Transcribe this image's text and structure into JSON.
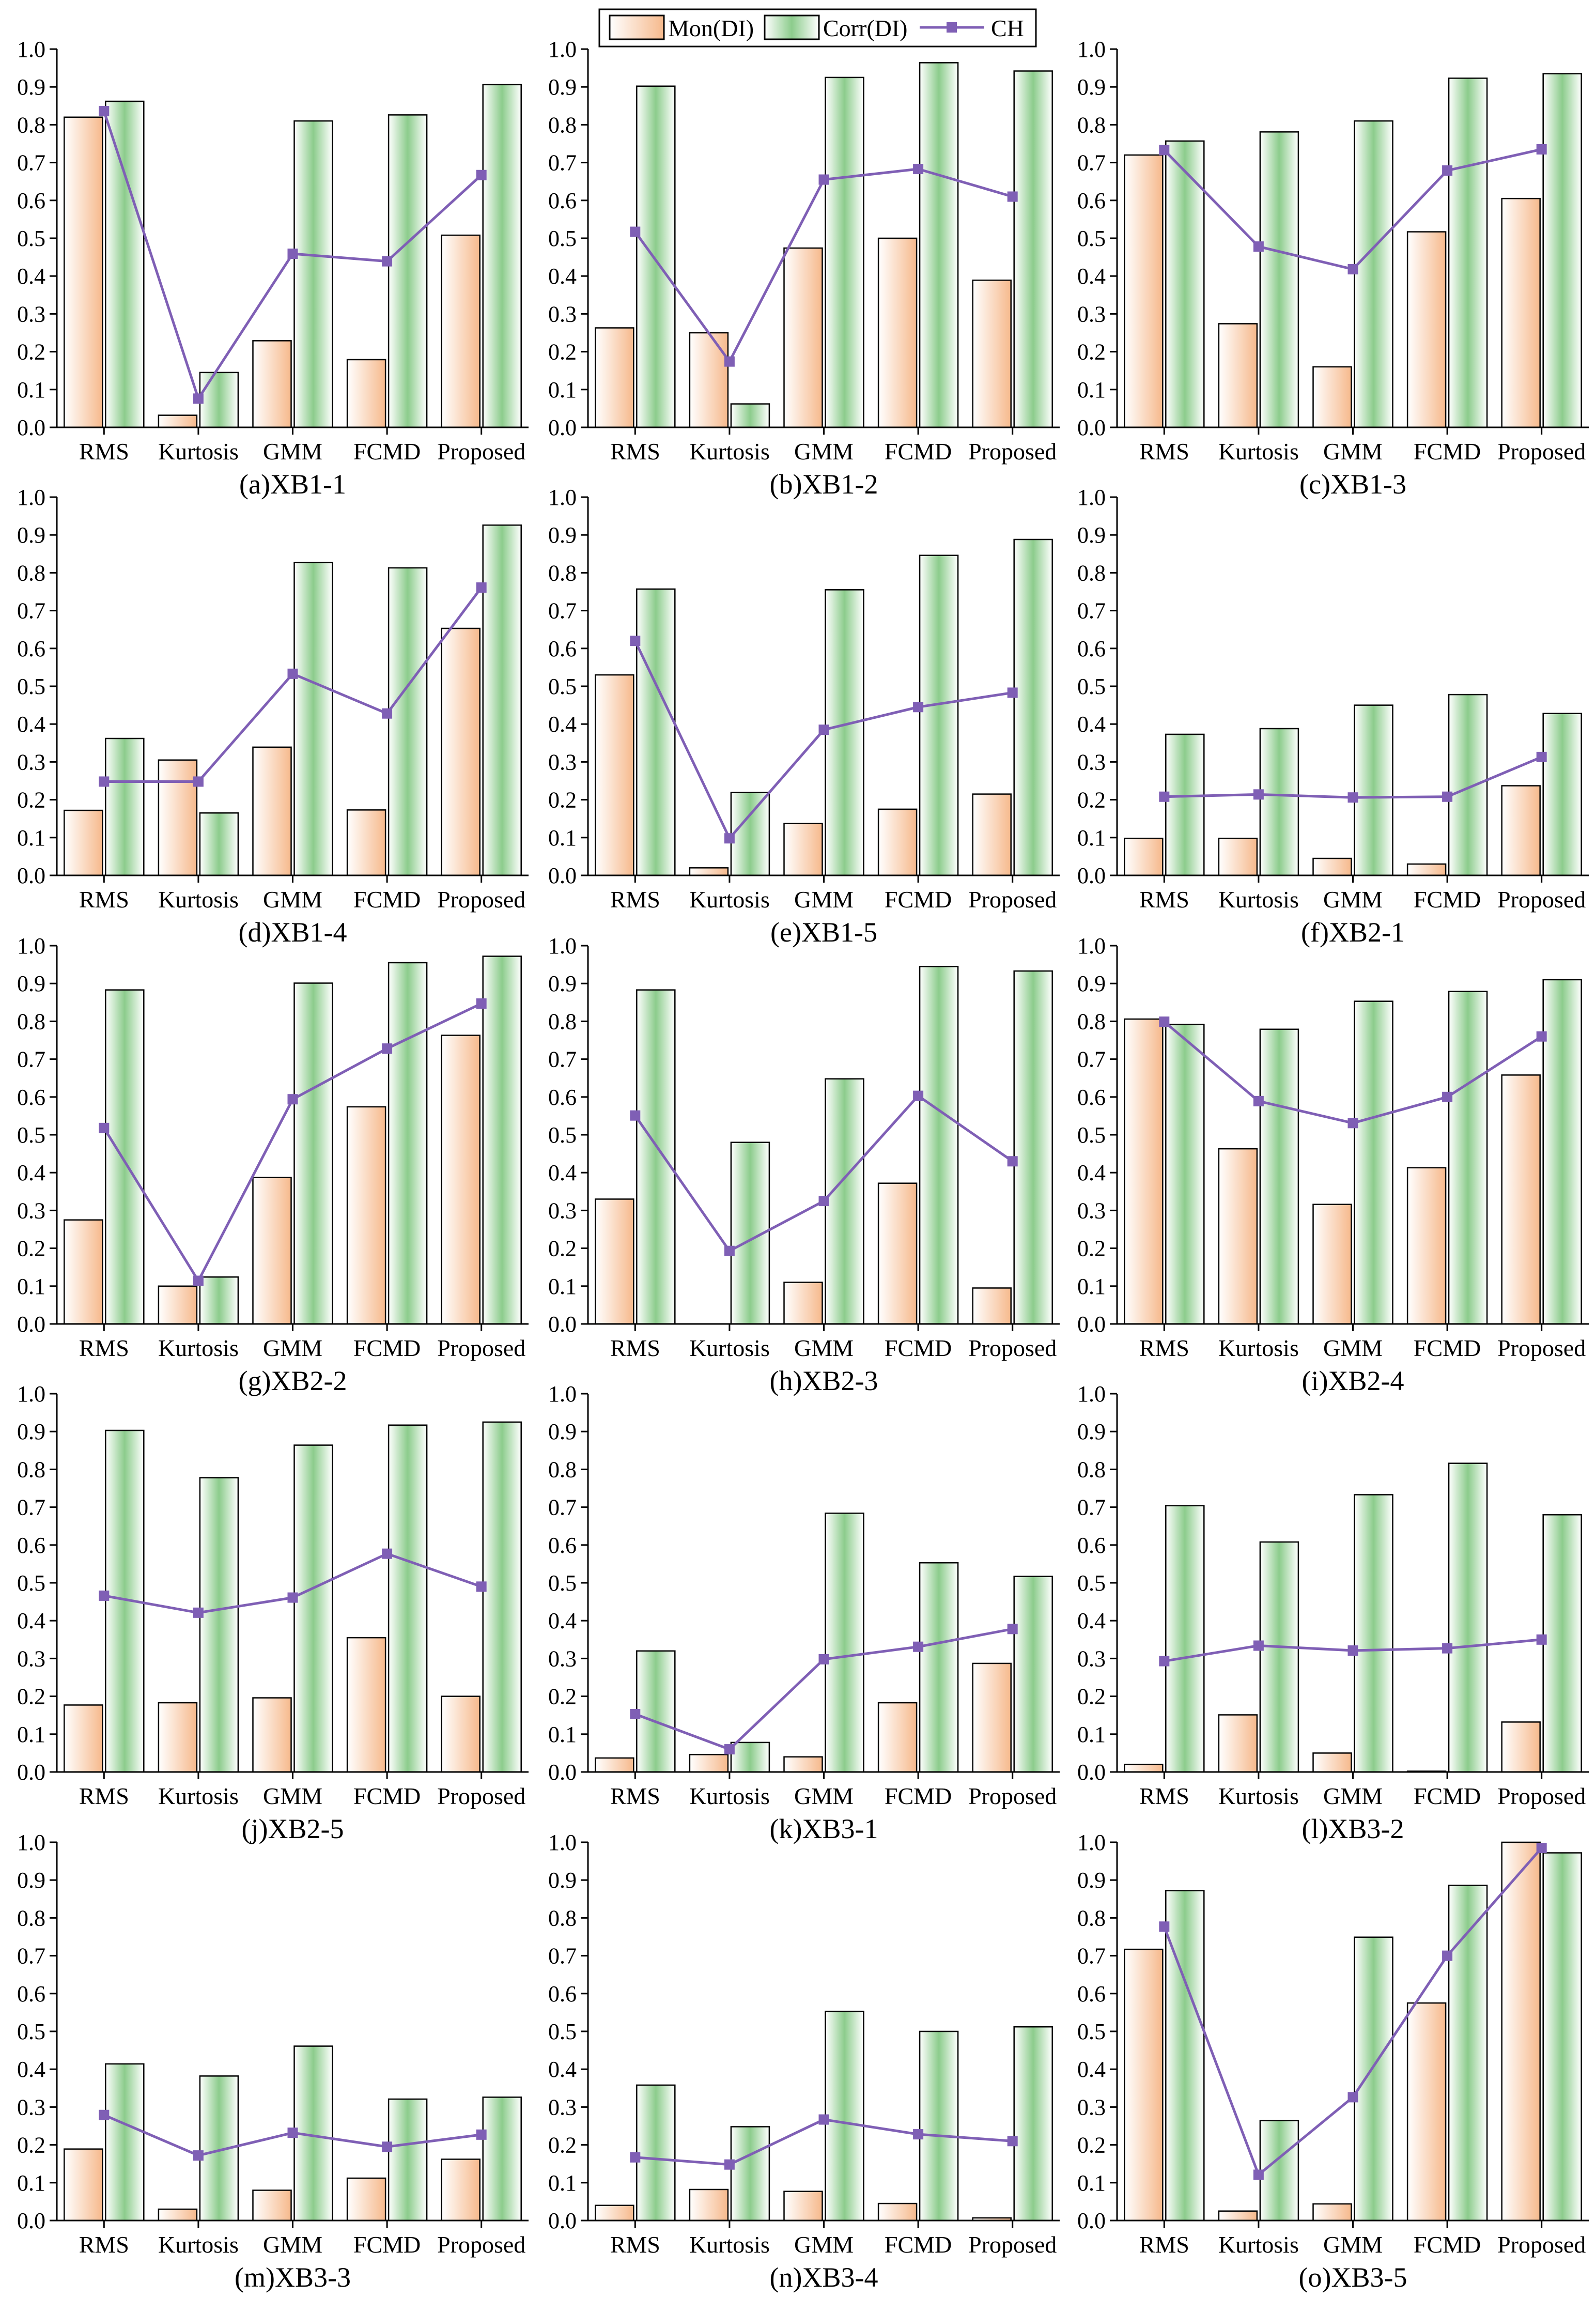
{
  "legend": {
    "mon_label": "Mon(DI)",
    "corr_label": "Corr(DI)",
    "ch_label": "CH"
  },
  "colors": {
    "mon_light": "#ffffff",
    "mon_dark": "#f6b98c",
    "corr_light": "#ffffff",
    "corr_dark": "#8ccc8c",
    "ch": "#7f5fb5"
  },
  "chart_data": [
    {
      "type": "bar",
      "title": "(a)XB1-1",
      "categories": [
        "RMS",
        "Kurtosis",
        "GMM",
        "FCMD",
        "Proposed"
      ],
      "ylim": [
        0,
        1
      ],
      "yticks": [
        "0.0",
        "0.1",
        "0.2",
        "0.3",
        "0.4",
        "0.5",
        "0.6",
        "0.7",
        "0.8",
        "0.9",
        "1.0"
      ],
      "series": [
        {
          "name": "Mon(DI)",
          "values": [
            0.82,
            0.032,
            0.229,
            0.179,
            0.508
          ]
        },
        {
          "name": "Corr(DI)",
          "values": [
            0.862,
            0.145,
            0.81,
            0.826,
            0.906
          ]
        },
        {
          "name": "CH",
          "values": [
            0.836,
            0.076,
            0.459,
            0.439,
            0.667
          ]
        }
      ]
    },
    {
      "type": "bar",
      "title": "(b)XB1-2",
      "categories": [
        "RMS",
        "Kurtosis",
        "GMM",
        "FCMD",
        "Proposed"
      ],
      "ylim": [
        0,
        1
      ],
      "yticks": [
        "0.0",
        "0.1",
        "0.2",
        "0.3",
        "0.4",
        "0.5",
        "0.6",
        "0.7",
        "0.8",
        "0.9",
        "1.0"
      ],
      "series": [
        {
          "name": "Mon(DI)",
          "values": [
            0.263,
            0.25,
            0.474,
            0.5,
            0.389
          ]
        },
        {
          "name": "Corr(DI)",
          "values": [
            0.902,
            0.062,
            0.925,
            0.964,
            0.942
          ]
        },
        {
          "name": "CH",
          "values": [
            0.517,
            0.174,
            0.655,
            0.683,
            0.61
          ]
        }
      ]
    },
    {
      "type": "bar",
      "title": "(c)XB1-3",
      "categories": [
        "RMS",
        "Kurtosis",
        "GMM",
        "FCMD",
        "Proposed"
      ],
      "ylim": [
        0,
        1
      ],
      "yticks": [
        "0.0",
        "0.1",
        "0.2",
        "0.3",
        "0.4",
        "0.5",
        "0.6",
        "0.7",
        "0.8",
        "0.9",
        "1.0"
      ],
      "series": [
        {
          "name": "Mon(DI)",
          "values": [
            0.72,
            0.274,
            0.16,
            0.517,
            0.605
          ]
        },
        {
          "name": "Corr(DI)",
          "values": [
            0.757,
            0.781,
            0.81,
            0.923,
            0.935
          ]
        },
        {
          "name": "CH",
          "values": [
            0.733,
            0.478,
            0.418,
            0.679,
            0.735
          ]
        }
      ]
    },
    {
      "type": "bar",
      "title": "(d)XB1-4",
      "categories": [
        "RMS",
        "Kurtosis",
        "GMM",
        "FCMD",
        "Proposed"
      ],
      "ylim": [
        0,
        1
      ],
      "yticks": [
        "0.0",
        "0.1",
        "0.2",
        "0.3",
        "0.4",
        "0.5",
        "0.6",
        "0.7",
        "0.8",
        "0.9",
        "1.0"
      ],
      "series": [
        {
          "name": "Mon(DI)",
          "values": [
            0.172,
            0.305,
            0.339,
            0.173,
            0.653
          ]
        },
        {
          "name": "Corr(DI)",
          "values": [
            0.362,
            0.165,
            0.827,
            0.813,
            0.926
          ]
        },
        {
          "name": "CH",
          "values": [
            0.248,
            0.248,
            0.533,
            0.428,
            0.761
          ]
        }
      ]
    },
    {
      "type": "bar",
      "title": "(e)XB1-5",
      "categories": [
        "RMS",
        "Kurtosis",
        "GMM",
        "FCMD",
        "Proposed"
      ],
      "ylim": [
        0,
        1
      ],
      "yticks": [
        "0.0",
        "0.1",
        "0.2",
        "0.3",
        "0.4",
        "0.5",
        "0.6",
        "0.7",
        "0.8",
        "0.9",
        "1.0"
      ],
      "series": [
        {
          "name": "Mon(DI)",
          "values": [
            0.53,
            0.02,
            0.137,
            0.175,
            0.215
          ]
        },
        {
          "name": "Corr(DI)",
          "values": [
            0.757,
            0.219,
            0.755,
            0.846,
            0.888
          ]
        },
        {
          "name": "CH",
          "values": [
            0.62,
            0.098,
            0.385,
            0.445,
            0.483
          ]
        }
      ]
    },
    {
      "type": "bar",
      "title": "(f)XB2-1",
      "categories": [
        "RMS",
        "Kurtosis",
        "GMM",
        "FCMD",
        "Proposed"
      ],
      "ylim": [
        0,
        1
      ],
      "yticks": [
        "0.0",
        "0.1",
        "0.2",
        "0.3",
        "0.4",
        "0.5",
        "0.6",
        "0.7",
        "0.8",
        "0.9",
        "1.0"
      ],
      "series": [
        {
          "name": "Mon(DI)",
          "values": [
            0.098,
            0.098,
            0.045,
            0.03,
            0.237
          ]
        },
        {
          "name": "Corr(DI)",
          "values": [
            0.373,
            0.388,
            0.45,
            0.478,
            0.428
          ]
        },
        {
          "name": "CH",
          "values": [
            0.208,
            0.214,
            0.206,
            0.208,
            0.313
          ]
        }
      ]
    },
    {
      "type": "bar",
      "title": "(g)XB2-2",
      "categories": [
        "RMS",
        "Kurtosis",
        "GMM",
        "FCMD",
        "Proposed"
      ],
      "ylim": [
        0,
        1
      ],
      "yticks": [
        "0.0",
        "0.1",
        "0.2",
        "0.3",
        "0.4",
        "0.5",
        "0.6",
        "0.7",
        "0.8",
        "0.9",
        "1.0"
      ],
      "series": [
        {
          "name": "Mon(DI)",
          "values": [
            0.275,
            0.1,
            0.387,
            0.574,
            0.763
          ]
        },
        {
          "name": "Corr(DI)",
          "values": [
            0.883,
            0.124,
            0.901,
            0.955,
            0.972
          ]
        },
        {
          "name": "CH",
          "values": [
            0.518,
            0.114,
            0.594,
            0.728,
            0.847
          ]
        }
      ]
    },
    {
      "type": "bar",
      "title": "(h)XB2-3",
      "categories": [
        "RMS",
        "Kurtosis",
        "GMM",
        "FCMD",
        "Proposed"
      ],
      "ylim": [
        0,
        1
      ],
      "yticks": [
        "0.0",
        "0.1",
        "0.2",
        "0.3",
        "0.4",
        "0.5",
        "0.6",
        "0.7",
        "0.8",
        "0.9",
        "1.0"
      ],
      "series": [
        {
          "name": "Mon(DI)",
          "values": [
            0.33,
            0.0,
            0.11,
            0.372,
            0.095
          ]
        },
        {
          "name": "Corr(DI)",
          "values": [
            0.883,
            0.48,
            0.648,
            0.945,
            0.933
          ]
        },
        {
          "name": "CH",
          "values": [
            0.551,
            0.193,
            0.325,
            0.603,
            0.43
          ]
        }
      ]
    },
    {
      "type": "bar",
      "title": "(i)XB2-4",
      "categories": [
        "RMS",
        "Kurtosis",
        "GMM",
        "FCMD",
        "Proposed"
      ],
      "ylim": [
        0,
        1
      ],
      "yticks": [
        "0.0",
        "0.1",
        "0.2",
        "0.3",
        "0.4",
        "0.5",
        "0.6",
        "0.7",
        "0.8",
        "0.9",
        "1.0"
      ],
      "series": [
        {
          "name": "Mon(DI)",
          "values": [
            0.806,
            0.463,
            0.316,
            0.413,
            0.658
          ]
        },
        {
          "name": "Corr(DI)",
          "values": [
            0.792,
            0.779,
            0.853,
            0.879,
            0.91
          ]
        },
        {
          "name": "CH",
          "values": [
            0.799,
            0.589,
            0.531,
            0.6,
            0.76
          ]
        }
      ]
    },
    {
      "type": "bar",
      "title": "(j)XB2-5",
      "categories": [
        "RMS",
        "Kurtosis",
        "GMM",
        "FCMD",
        "Proposed"
      ],
      "ylim": [
        0,
        1
      ],
      "yticks": [
        "0.0",
        "0.1",
        "0.2",
        "0.3",
        "0.4",
        "0.5",
        "0.6",
        "0.7",
        "0.8",
        "0.9",
        "1.0"
      ],
      "series": [
        {
          "name": "Mon(DI)",
          "values": [
            0.177,
            0.183,
            0.196,
            0.355,
            0.2
          ]
        },
        {
          "name": "Corr(DI)",
          "values": [
            0.903,
            0.778,
            0.864,
            0.917,
            0.925
          ]
        },
        {
          "name": "CH",
          "values": [
            0.466,
            0.421,
            0.461,
            0.577,
            0.49
          ]
        }
      ]
    },
    {
      "type": "bar",
      "title": "(k)XB3-1",
      "categories": [
        "RMS",
        "Kurtosis",
        "GMM",
        "FCMD",
        "Proposed"
      ],
      "ylim": [
        0,
        1
      ],
      "yticks": [
        "0.0",
        "0.1",
        "0.2",
        "0.3",
        "0.4",
        "0.5",
        "0.6",
        "0.7",
        "0.8",
        "0.9",
        "1.0"
      ],
      "series": [
        {
          "name": "Mon(DI)",
          "values": [
            0.037,
            0.046,
            0.04,
            0.183,
            0.287
          ]
        },
        {
          "name": "Corr(DI)",
          "values": [
            0.32,
            0.078,
            0.684,
            0.553,
            0.517
          ]
        },
        {
          "name": "CH",
          "values": [
            0.153,
            0.06,
            0.298,
            0.331,
            0.378
          ]
        }
      ]
    },
    {
      "type": "bar",
      "title": "(l)XB3-2",
      "categories": [
        "RMS",
        "Kurtosis",
        "GMM",
        "FCMD",
        "Proposed"
      ],
      "ylim": [
        0,
        1
      ],
      "yticks": [
        "0.0",
        "0.1",
        "0.2",
        "0.3",
        "0.4",
        "0.5",
        "0.6",
        "0.7",
        "0.8",
        "0.9",
        "1.0"
      ],
      "series": [
        {
          "name": "Mon(DI)",
          "values": [
            0.02,
            0.151,
            0.05,
            0.002,
            0.132
          ]
        },
        {
          "name": "Corr(DI)",
          "values": [
            0.704,
            0.608,
            0.733,
            0.816,
            0.68
          ]
        },
        {
          "name": "CH",
          "values": [
            0.293,
            0.334,
            0.321,
            0.327,
            0.35
          ]
        }
      ]
    },
    {
      "type": "bar",
      "title": "(m)XB3-3",
      "categories": [
        "RMS",
        "Kurtosis",
        "GMM",
        "FCMD",
        "Proposed"
      ],
      "ylim": [
        0,
        1
      ],
      "yticks": [
        "0.0",
        "0.1",
        "0.2",
        "0.3",
        "0.4",
        "0.5",
        "0.6",
        "0.7",
        "0.8",
        "0.9",
        "1.0"
      ],
      "series": [
        {
          "name": "Mon(DI)",
          "values": [
            0.189,
            0.03,
            0.08,
            0.112,
            0.162
          ]
        },
        {
          "name": "Corr(DI)",
          "values": [
            0.414,
            0.382,
            0.461,
            0.321,
            0.326
          ]
        },
        {
          "name": "CH",
          "values": [
            0.279,
            0.172,
            0.232,
            0.195,
            0.227
          ]
        }
      ]
    },
    {
      "type": "bar",
      "title": "(n)XB3-4",
      "categories": [
        "RMS",
        "Kurtosis",
        "GMM",
        "FCMD",
        "Proposed"
      ],
      "ylim": [
        0,
        1
      ],
      "yticks": [
        "0.0",
        "0.1",
        "0.2",
        "0.3",
        "0.4",
        "0.5",
        "0.6",
        "0.7",
        "0.8",
        "0.9",
        "1.0"
      ],
      "series": [
        {
          "name": "Mon(DI)",
          "values": [
            0.04,
            0.082,
            0.077,
            0.045,
            0.007
          ]
        },
        {
          "name": "Corr(DI)",
          "values": [
            0.358,
            0.248,
            0.553,
            0.5,
            0.512
          ]
        },
        {
          "name": "CH",
          "values": [
            0.167,
            0.148,
            0.267,
            0.228,
            0.21
          ]
        }
      ]
    },
    {
      "type": "bar",
      "title": "(o)XB3-5",
      "categories": [
        "RMS",
        "Kurtosis",
        "GMM",
        "FCMD",
        "Proposed"
      ],
      "ylim": [
        0,
        1
      ],
      "yticks": [
        "0.0",
        "0.1",
        "0.2",
        "0.3",
        "0.4",
        "0.5",
        "0.6",
        "0.7",
        "0.8",
        "0.9",
        "1.0"
      ],
      "series": [
        {
          "name": "Mon(DI)",
          "values": [
            0.717,
            0.025,
            0.044,
            0.575,
            1.0
          ]
        },
        {
          "name": "Corr(DI)",
          "values": [
            0.872,
            0.264,
            0.749,
            0.886,
            0.972
          ]
        },
        {
          "name": "CH",
          "values": [
            0.777,
            0.121,
            0.326,
            0.7,
            0.985
          ]
        }
      ]
    }
  ]
}
